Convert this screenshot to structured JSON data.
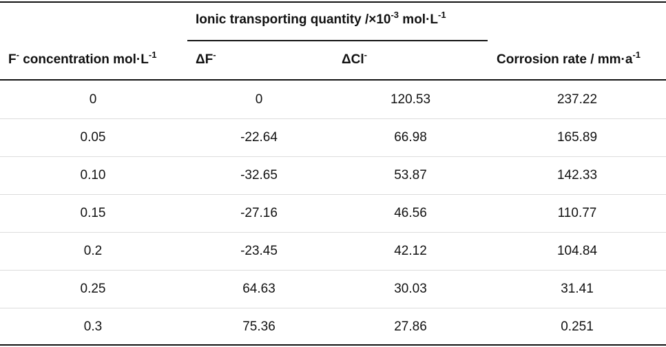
{
  "table": {
    "group_header": {
      "text": "Ionic transporting quantity /×10",
      "sup": "-3",
      "text2": " mol·L",
      "sup2": "-1"
    },
    "columns": [
      {
        "text": "F",
        "sup": "-",
        "text2": " concentration mol·L",
        "sup2": "-1"
      },
      {
        "text": "ΔF",
        "sup": "-"
      },
      {
        "text": "ΔCl",
        "sup": "-"
      },
      {
        "text": "Corrosion rate / mm·a",
        "sup": "-1"
      }
    ],
    "rows": [
      [
        "0",
        "0",
        "120.53",
        "237.22"
      ],
      [
        "0.05",
        "-22.64",
        "66.98",
        "165.89"
      ],
      [
        "0.10",
        "-32.65",
        "53.87",
        "142.33"
      ],
      [
        "0.15",
        "-27.16",
        "46.56",
        "110.77"
      ],
      [
        "0.2",
        "-23.45",
        "42.12",
        "104.84"
      ],
      [
        "0.25",
        "64.63",
        "30.03",
        "31.41"
      ],
      [
        "0.3",
        "75.36",
        "27.86",
        "0.251"
      ]
    ]
  }
}
